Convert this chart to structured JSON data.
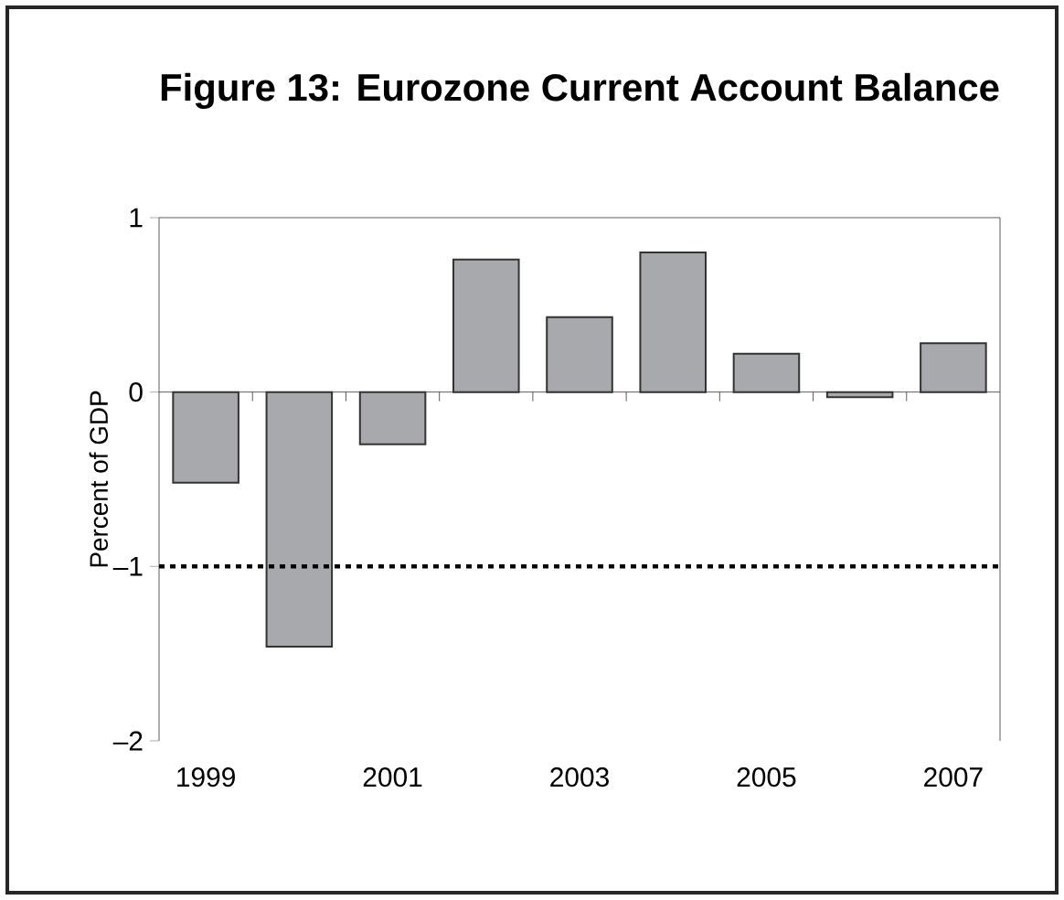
{
  "chart_data": {
    "type": "bar",
    "title": "Figure 13: Eurozone Current Account Balance",
    "ylabel": "Percent of GDP",
    "categories": [
      "1999",
      null,
      "2001",
      null,
      "2003",
      null,
      "2005",
      null,
      "2007"
    ],
    "values": [
      -0.52,
      -1.46,
      -0.3,
      0.76,
      0.43,
      0.8,
      0.22,
      -0.03,
      0.28
    ],
    "color": "#a7a9ac",
    "ylim": [
      -2,
      1
    ],
    "yticks": [
      {
        "value": -2,
        "label": "–2"
      },
      {
        "value": -1,
        "label": "–1"
      },
      0,
      1
    ],
    "ref_lines": [
      {
        "axis": "y",
        "value": -1,
        "color": "#000000",
        "line_style": "dotted"
      }
    ],
    "grid": false
  }
}
